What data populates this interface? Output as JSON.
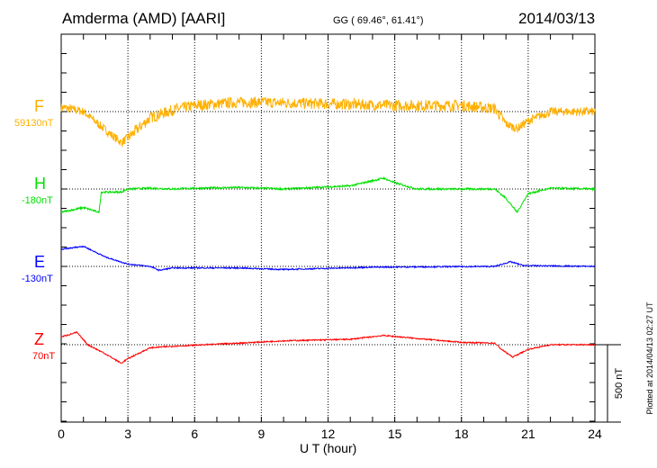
{
  "header": {
    "station": "Amderma (AMD)  [AARI]",
    "coords": "GG ( 69.46°,  61.41°)",
    "date": "2014/03/13"
  },
  "footer": {
    "plotted": "Plotted at 2014/04/13 02:27 UT",
    "scale_label": "500 nT"
  },
  "chart_data": {
    "type": "line",
    "xlabel": "U T (hour)",
    "xlim": [
      0,
      24
    ],
    "x_ticks": [
      "0",
      "3",
      "6",
      "9",
      "12",
      "15",
      "18",
      "21",
      "24"
    ],
    "scale_nT": 500,
    "grid": "dotted vertical every 3 hours, dotted baseline per series",
    "series": [
      {
        "name": "F",
        "baseline_label": "59130nT",
        "color": "#ffb000",
        "noise_nT": 35,
        "points": [
          [
            0,
            30
          ],
          [
            1,
            0
          ],
          [
            2,
            -120
          ],
          [
            2.7,
            -200
          ],
          [
            3,
            -170
          ],
          [
            4,
            -40
          ],
          [
            5,
            10
          ],
          [
            6,
            40
          ],
          [
            8,
            60
          ],
          [
            9,
            60
          ],
          [
            12,
            50
          ],
          [
            15,
            40
          ],
          [
            18,
            40
          ],
          [
            19.5,
            20
          ],
          [
            20,
            -80
          ],
          [
            20.5,
            -110
          ],
          [
            21,
            -60
          ],
          [
            22,
            0
          ],
          [
            24,
            0
          ]
        ]
      },
      {
        "name": "H",
        "baseline_label": "-180nT",
        "color": "#00e000",
        "noise_nT": 12,
        "points": [
          [
            0,
            -150
          ],
          [
            1,
            -120
          ],
          [
            1.7,
            -150
          ],
          [
            1.8,
            -20
          ],
          [
            2.7,
            -20
          ],
          [
            3,
            0
          ],
          [
            4,
            5
          ],
          [
            5,
            0
          ],
          [
            6,
            5
          ],
          [
            8,
            10
          ],
          [
            10,
            0
          ],
          [
            13,
            20
          ],
          [
            14.5,
            70
          ],
          [
            15,
            40
          ],
          [
            16,
            0
          ],
          [
            19.5,
            0
          ],
          [
            20,
            -60
          ],
          [
            20.5,
            -150
          ],
          [
            21,
            -30
          ],
          [
            22,
            5
          ],
          [
            24,
            0
          ]
        ]
      },
      {
        "name": "E",
        "baseline_label": "-130nT",
        "color": "#0000ff",
        "noise_nT": 8,
        "points": [
          [
            0,
            110
          ],
          [
            1,
            130
          ],
          [
            2,
            60
          ],
          [
            3,
            15
          ],
          [
            4,
            0
          ],
          [
            4.4,
            -25
          ],
          [
            5,
            -10
          ],
          [
            8,
            -10
          ],
          [
            10,
            -20
          ],
          [
            14,
            -5
          ],
          [
            19.5,
            0
          ],
          [
            20.2,
            30
          ],
          [
            20.8,
            5
          ],
          [
            24,
            0
          ]
        ]
      },
      {
        "name": "Z",
        "baseline_label": "70nT",
        "color": "#ff0000",
        "noise_nT": 8,
        "points": [
          [
            0,
            50
          ],
          [
            0.7,
            80
          ],
          [
            1.2,
            0
          ],
          [
            2,
            -60
          ],
          [
            2.7,
            -120
          ],
          [
            3,
            -90
          ],
          [
            4,
            -20
          ],
          [
            5,
            -10
          ],
          [
            8,
            10
          ],
          [
            10,
            25
          ],
          [
            13,
            35
          ],
          [
            14.5,
            60
          ],
          [
            16,
            40
          ],
          [
            18,
            15
          ],
          [
            19.5,
            10
          ],
          [
            19.8,
            -30
          ],
          [
            20.3,
            -80
          ],
          [
            21,
            -30
          ],
          [
            22,
            0
          ],
          [
            24,
            0
          ]
        ]
      }
    ]
  }
}
